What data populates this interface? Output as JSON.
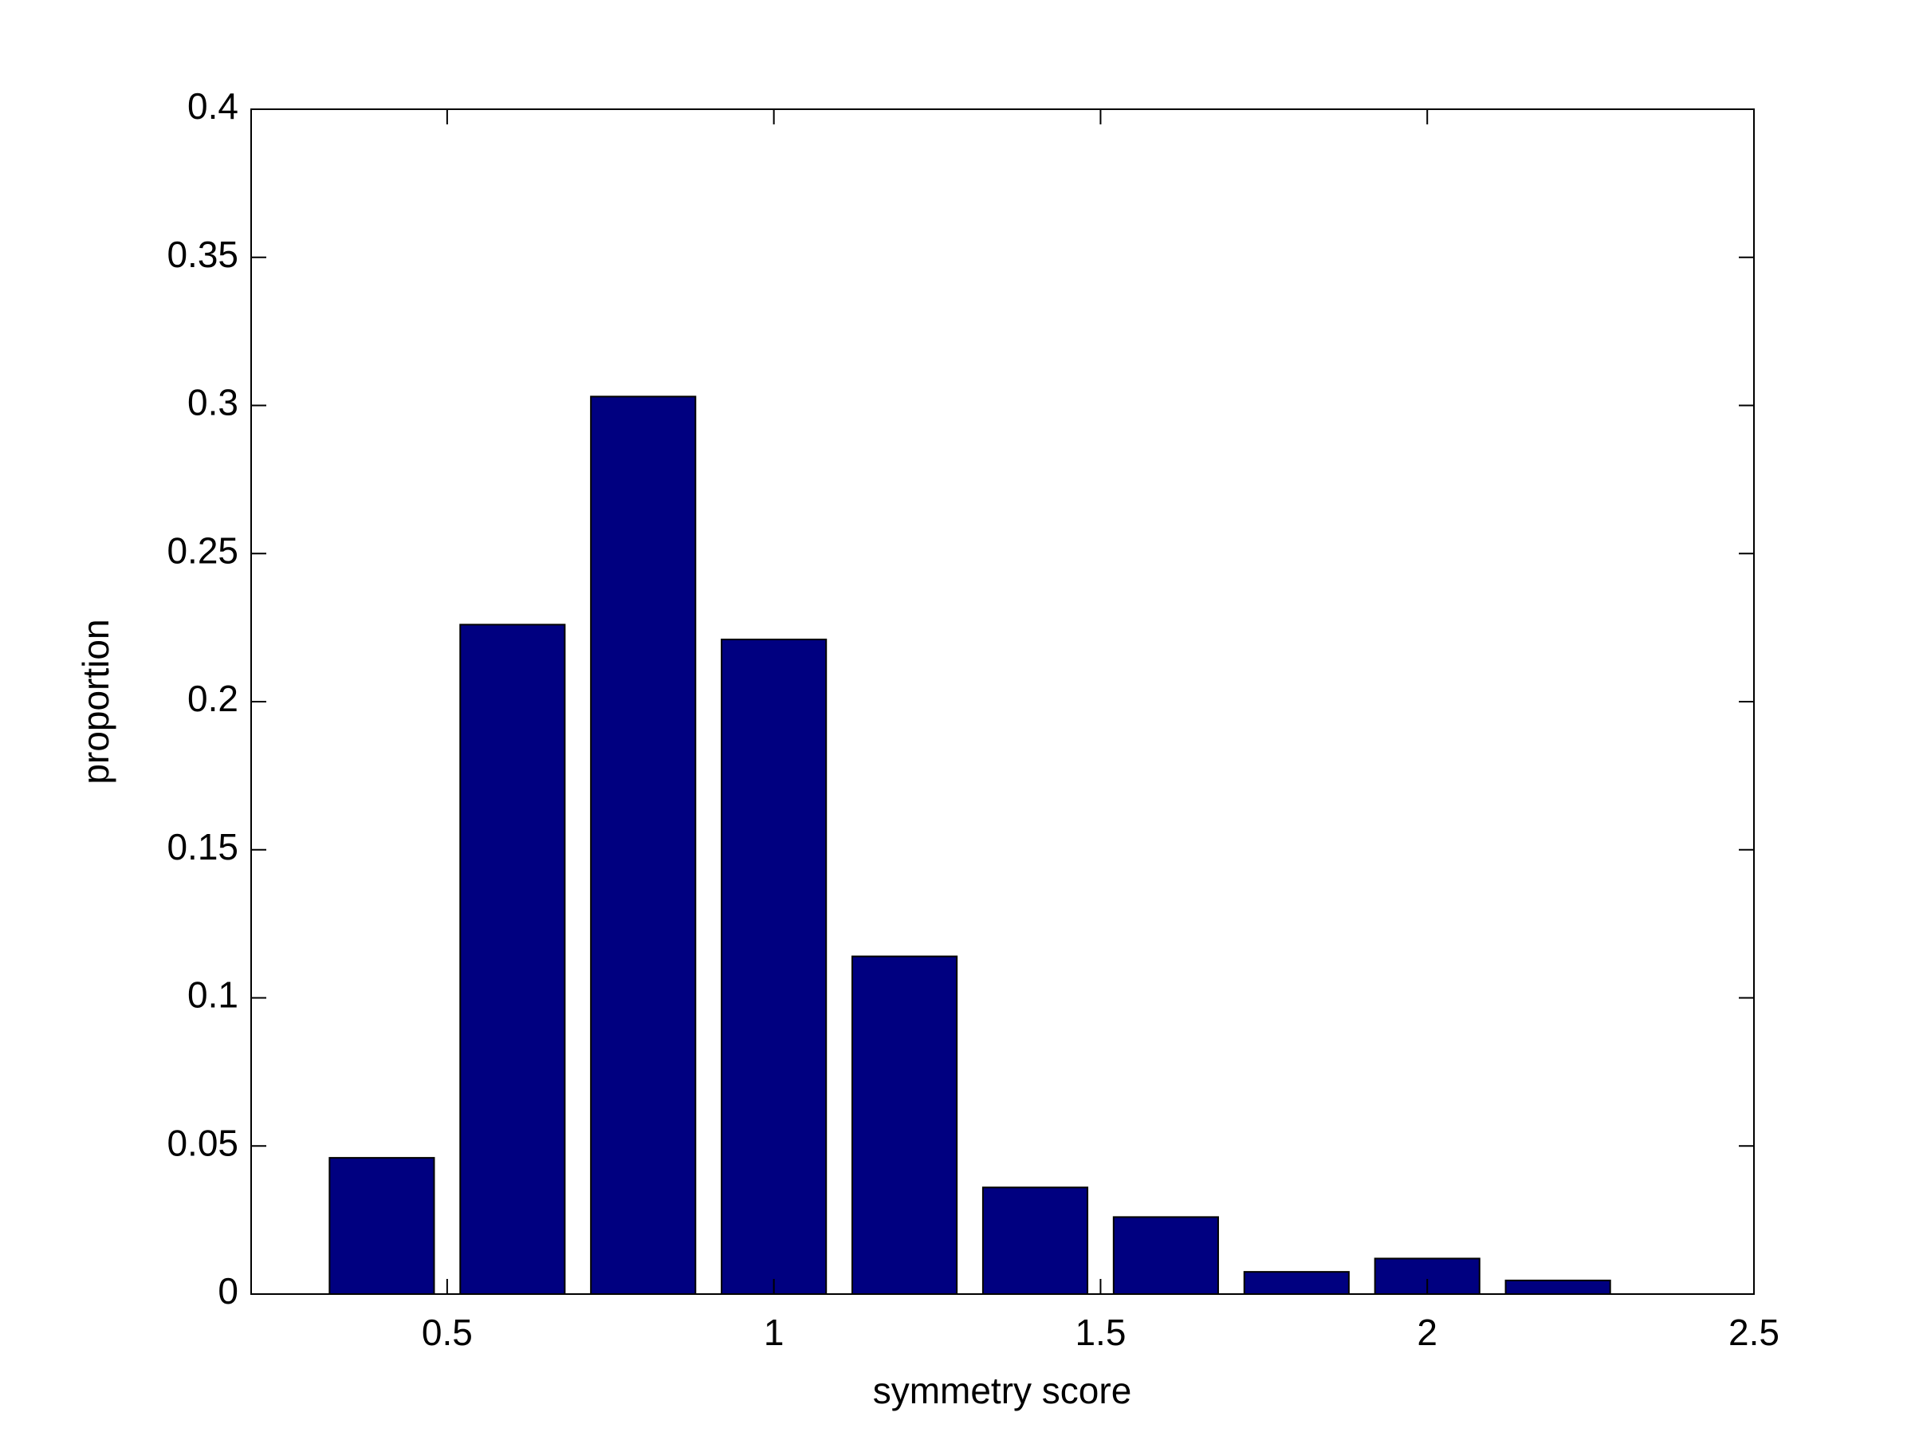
{
  "chart_data": {
    "type": "bar",
    "xlabel": "symmetry score",
    "ylabel": "proportion",
    "x": [
      0.4,
      0.6,
      0.8,
      1.0,
      1.2,
      1.4,
      1.6,
      1.8,
      2.0,
      2.2
    ],
    "values": [
      0.046,
      0.226,
      0.303,
      0.221,
      0.114,
      0.036,
      0.026,
      0.0075,
      0.012,
      0.0046
    ],
    "color": "#000080",
    "xlim": [
      0.2,
      2.5
    ],
    "xticks": [
      0.5,
      1,
      1.5,
      2,
      2.5
    ],
    "ylim": [
      0,
      0.4
    ],
    "yticks": [
      0,
      0.05,
      0.1,
      0.15,
      0.2,
      0.25,
      0.3,
      0.35,
      0.4
    ],
    "grid": false
  }
}
